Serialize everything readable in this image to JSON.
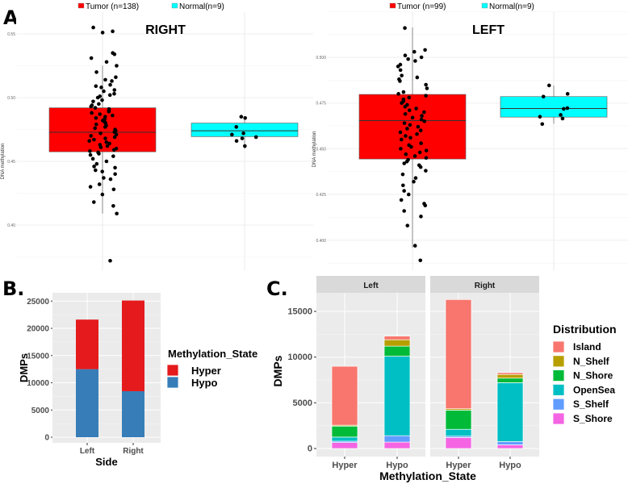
{
  "panel_labels": {
    "a": "A.",
    "b": "B.",
    "c": "C."
  },
  "chart_data": [
    {
      "type": "boxplot",
      "panel": "A",
      "title": "RIGHT",
      "ylabel": "DNA methylation",
      "ylim": [
        0.365,
        0.565
      ],
      "yticks": [
        "0.40",
        "0.45",
        "0.50",
        "0.55"
      ],
      "ytick_values": [
        0.4,
        0.45,
        0.5,
        0.55
      ],
      "legend": [
        {
          "label": "Tumor (n=138)",
          "color": "#FF0000"
        },
        {
          "label": "Normal(n=9)",
          "color": "#00FFFF"
        }
      ],
      "groups": [
        {
          "name": "Tumor",
          "color": "#FF0000",
          "q1": 0.4575,
          "median": 0.4728,
          "q3": 0.492,
          "whisker_low": 0.409,
          "whisker_high": 0.525,
          "points": [
            0.555,
            0.551,
            0.552,
            0.535,
            0.534,
            0.531,
            0.528,
            0.525,
            0.52,
            0.516,
            0.514,
            0.513,
            0.51,
            0.509,
            0.508,
            0.506,
            0.505,
            0.503,
            0.502,
            0.501,
            0.5,
            0.498,
            0.497,
            0.495,
            0.494,
            0.493,
            0.492,
            0.491,
            0.49,
            0.489,
            0.488,
            0.487,
            0.486,
            0.485,
            0.484,
            0.483,
            0.482,
            0.481,
            0.48,
            0.479,
            0.478,
            0.477,
            0.476,
            0.475,
            0.474,
            0.473,
            0.472,
            0.471,
            0.47,
            0.469,
            0.468,
            0.467,
            0.466,
            0.465,
            0.464,
            0.463,
            0.462,
            0.461,
            0.46,
            0.459,
            0.458,
            0.457,
            0.456,
            0.455,
            0.454,
            0.452,
            0.45,
            0.448,
            0.446,
            0.445,
            0.443,
            0.442,
            0.44,
            0.437,
            0.436,
            0.432,
            0.43,
            0.428,
            0.424,
            0.418,
            0.415,
            0.409,
            0.372
          ]
        },
        {
          "name": "Normal",
          "color": "#00FFFF",
          "q1": 0.4694,
          "median": 0.474,
          "q3": 0.48,
          "whisker_low": 0.4597,
          "whisker_high": 0.4846,
          "points": [
            0.485,
            0.484,
            0.477,
            0.472,
            0.471,
            0.469,
            0.468,
            0.466,
            0.462
          ]
        }
      ]
    },
    {
      "type": "boxplot",
      "panel": "A",
      "title": "LEFT",
      "ylabel": "DNA methylation",
      "ylim": [
        0.383,
        0.525
      ],
      "yticks": [
        "0.400",
        "0.425",
        "0.450",
        "0.475",
        "0.500"
      ],
      "ytick_values": [
        0.4,
        0.425,
        0.45,
        0.475,
        0.5
      ],
      "legend": [
        {
          "label": "Tumor (n=99)",
          "color": "#FF0000"
        },
        {
          "label": "Normal(n=9)",
          "color": "#00FFFF"
        }
      ],
      "groups": [
        {
          "name": "Tumor",
          "color": "#FF0000",
          "q1": 0.4444,
          "median": 0.4654,
          "q3": 0.4797,
          "whisker_low": 0.396,
          "whisker_high": 0.5163,
          "points": [
            0.516,
            0.504,
            0.503,
            0.501,
            0.5,
            0.499,
            0.498,
            0.496,
            0.495,
            0.493,
            0.49,
            0.489,
            0.488,
            0.487,
            0.485,
            0.483,
            0.481,
            0.48,
            0.479,
            0.478,
            0.477,
            0.476,
            0.475,
            0.474,
            0.473,
            0.472,
            0.471,
            0.47,
            0.469,
            0.468,
            0.467,
            0.466,
            0.465,
            0.464,
            0.463,
            0.462,
            0.461,
            0.46,
            0.459,
            0.458,
            0.457,
            0.456,
            0.455,
            0.453,
            0.452,
            0.451,
            0.45,
            0.449,
            0.448,
            0.447,
            0.446,
            0.445,
            0.444,
            0.443,
            0.442,
            0.441,
            0.44,
            0.438,
            0.436,
            0.434,
            0.432,
            0.43,
            0.427,
            0.425,
            0.422,
            0.42,
            0.419,
            0.416,
            0.413,
            0.408,
            0.397,
            0.389
          ]
        },
        {
          "name": "Normal",
          "color": "#00FFFF",
          "q1": 0.4673,
          "median": 0.472,
          "q3": 0.4785,
          "whisker_low": 0.4636,
          "whisker_high": 0.4846,
          "points": [
            0.4846,
            0.48,
            0.4785,
            0.4722,
            0.4718,
            0.4685,
            0.4675,
            0.4665,
            0.4635
          ]
        }
      ]
    },
    {
      "type": "bar",
      "stacked": true,
      "panel": "B",
      "xlabel": "Side",
      "ylabel": "DMPs",
      "ylim": [
        0,
        26000
      ],
      "yticks": [
        "0",
        "5000",
        "10000",
        "15000",
        "20000",
        "25000"
      ],
      "ytick_values": [
        0,
        5000,
        10000,
        15000,
        20000,
        25000
      ],
      "categories": [
        "Left",
        "Right"
      ],
      "legend_title": "Methylation_State",
      "series": [
        {
          "name": "Hypo",
          "color": "#377EB8",
          "values": [
            12500,
            8450
          ]
        },
        {
          "name": "Hyper",
          "color": "#E41A1C",
          "values": [
            9100,
            16650
          ]
        }
      ],
      "legend_order": [
        "Hyper",
        "Hypo"
      ]
    },
    {
      "type": "bar",
      "stacked": true,
      "panel": "C",
      "xlabel": "Methylation_State",
      "ylabel": "DMPs",
      "ylim": [
        -900,
        17000
      ],
      "yticks": [
        "0",
        "5000",
        "10000",
        "15000"
      ],
      "ytick_values": [
        0,
        5000,
        10000,
        15000
      ],
      "facets": [
        "Left",
        "Right"
      ],
      "categories": [
        "Hyper",
        "Hypo"
      ],
      "legend_title": "Distribution",
      "series": [
        {
          "name": "S_Shore",
          "color": "#F564E3",
          "values": {
            "Left": [
              650,
              700
            ],
            "Right": [
              1200,
              400
            ]
          }
        },
        {
          "name": "S_Shelf",
          "color": "#619CFF",
          "values": {
            "Left": [
              150,
              700
            ],
            "Right": [
              150,
              350
            ]
          }
        },
        {
          "name": "OpenSea",
          "color": "#00BFC4",
          "values": {
            "Left": [
              450,
              8700
            ],
            "Right": [
              750,
              6450
            ]
          }
        },
        {
          "name": "N_Shore",
          "color": "#00BA38",
          "values": {
            "Left": [
              1200,
              1100
            ],
            "Right": [
              2100,
              500
            ]
          }
        },
        {
          "name": "N_Shelf",
          "color": "#B79F00",
          "values": {
            "Left": [
              100,
              700
            ],
            "Right": [
              150,
              400
            ]
          }
        },
        {
          "name": "Island",
          "color": "#F8766D",
          "values": {
            "Left": [
              6450,
              400
            ],
            "Right": [
              11950,
              200
            ]
          }
        }
      ],
      "legend_order": [
        "Island",
        "N_Shelf",
        "N_Shore",
        "OpenSea",
        "S_Shelf",
        "S_Shore"
      ]
    }
  ]
}
